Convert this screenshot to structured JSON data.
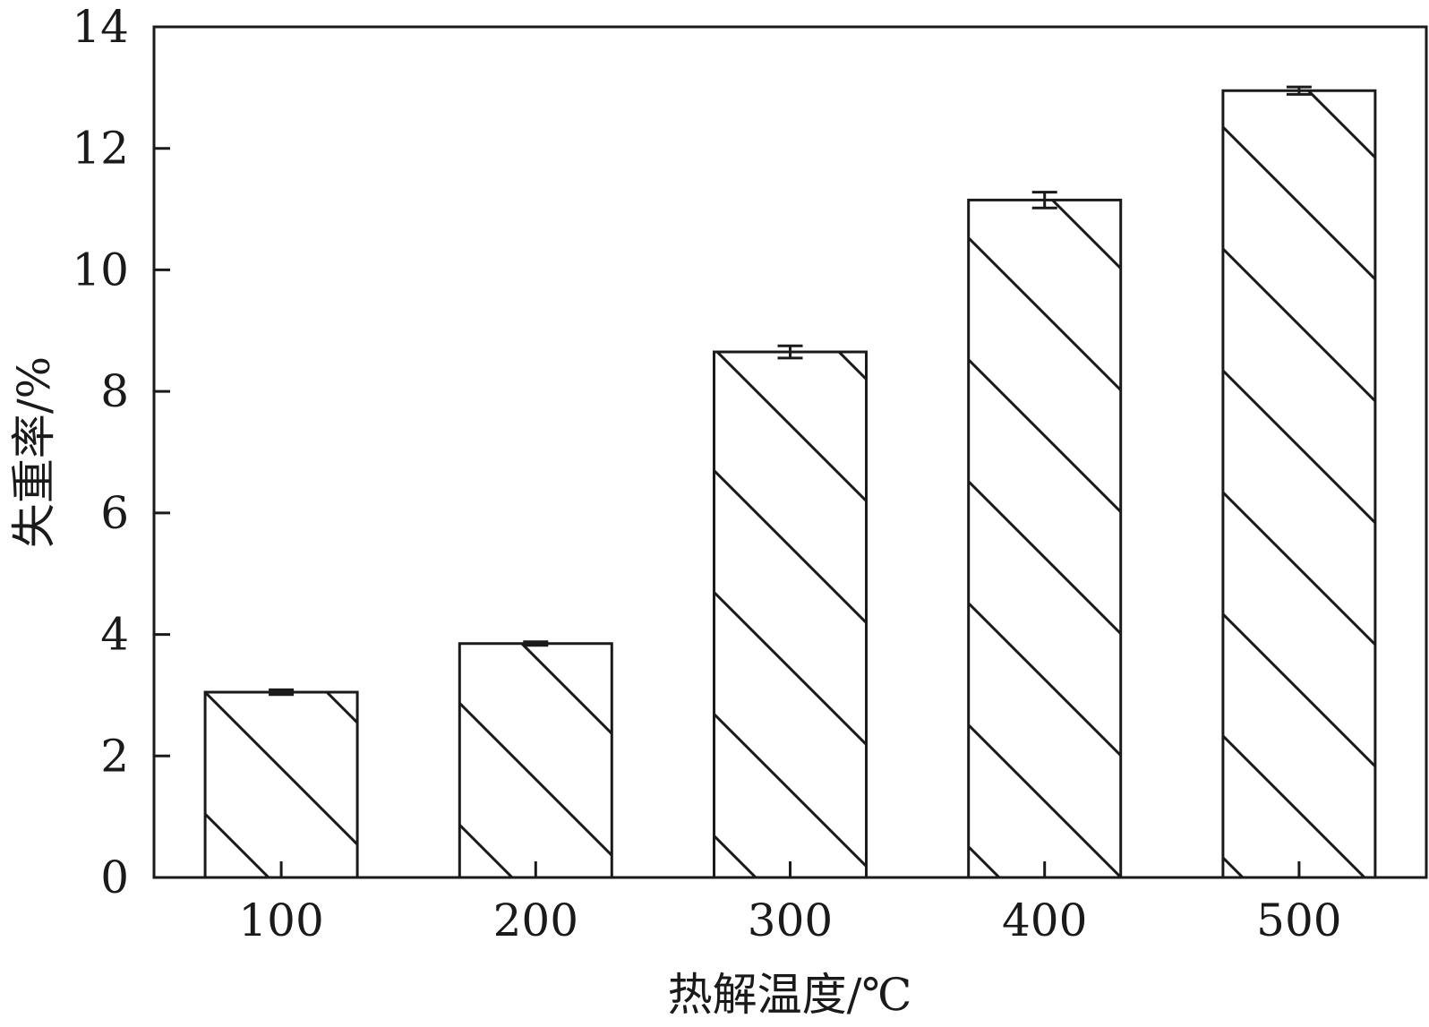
{
  "chart_data": {
    "type": "bar",
    "xlabel": "热解温度/℃",
    "ylabel": "失重率/%",
    "categories": [
      "100",
      "200",
      "300",
      "400",
      "500"
    ],
    "values": [
      3.05,
      3.85,
      8.65,
      11.15,
      12.95
    ],
    "errors": [
      0.04,
      0.03,
      0.1,
      0.13,
      0.06
    ],
    "ylim": [
      0,
      14
    ],
    "yticks": [
      "0",
      "2",
      "4",
      "6",
      "8",
      "10",
      "12",
      "14"
    ],
    "bar_pattern": "diagonal-hatch",
    "colors": {
      "bar_fill": "#ffffff",
      "stroke": "#1a1a1a"
    },
    "grid": false,
    "legend": "none"
  }
}
